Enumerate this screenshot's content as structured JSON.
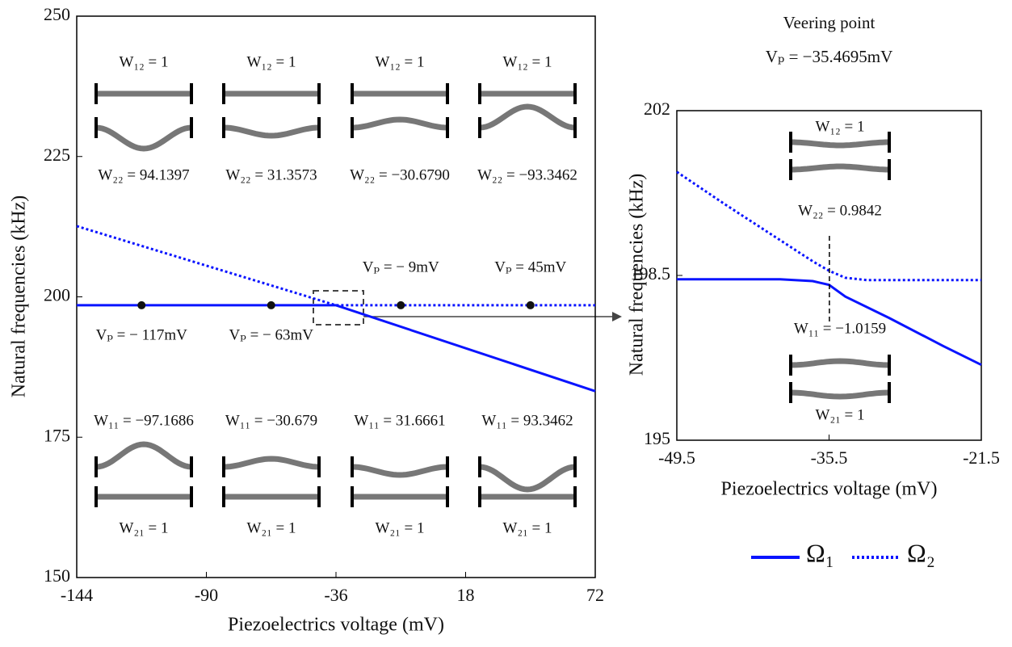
{
  "chart_data": [
    {
      "type": "line",
      "xlabel": "Piezoelectrics voltage (mV)",
      "ylabel": "Natural frequencies (kHz)",
      "xlim": [
        -144,
        72
      ],
      "ylim": [
        150,
        250
      ],
      "xticks": [
        -144,
        -90,
        -36,
        18,
        72
      ],
      "yticks": [
        150,
        175,
        200,
        225,
        250
      ],
      "series": [
        {
          "color": "#0a14ff",
          "style": "solid",
          "x": [
            -144,
            -36,
            72
          ],
          "values": [
            198.5,
            198.5,
            183.2
          ]
        },
        {
          "color": "#0a14ff",
          "style": "dotted",
          "x": [
            -144,
            -36,
            72
          ],
          "values": [
            212.6,
            198.5,
            198.5
          ]
        }
      ],
      "points": {
        "color": "#111111",
        "x": [
          -117,
          -63,
          -9,
          45
        ],
        "values": [
          198.5,
          198.5,
          198.5,
          198.5
        ],
        "labels": [
          "Vₚ = − 117mV",
          "Vₚ = − 63mV",
          "Vₚ = − 9mV",
          "Vₚ = 45mV"
        ]
      },
      "modes": [
        {
          "top": "W₁₂ = 1",
          "bottom": "W₂₂ = 94.1397"
        },
        {
          "top": "W₁₂ = 1",
          "bottom": "W₂₂ = 31.3573"
        },
        {
          "top": "W₁₂ = 1",
          "bottom": "W₂₂ = −30.6790"
        },
        {
          "top": "W₁₂ = 1",
          "bottom": "W₂₂ = −93.3462"
        },
        {
          "top": "W₁₁ = −97.1686",
          "bottom": "W₂₁ = 1"
        },
        {
          "top": "W₁₁ = −30.679",
          "bottom": "W₂₁ = 1"
        },
        {
          "top": "W₁₁ = 31.6661",
          "bottom": "W₂₁ = 1"
        },
        {
          "top": "W₁₁ = 93.3462",
          "bottom": "W₂₁ = 1"
        }
      ]
    },
    {
      "type": "line",
      "title": "Veering point",
      "subtitle": "Vₚ = −35.4695mV",
      "veering_x": -35.4695,
      "xlabel": "Piezoelectrics voltage (mV)",
      "ylabel": "Natural frequencies (kHz)",
      "xlim": [
        -49.5,
        -21.5
      ],
      "ylim": [
        195,
        202
      ],
      "xticks": [
        -49.5,
        -35.5,
        -21.5
      ],
      "yticks": [
        195,
        198.5,
        202
      ],
      "legend": "below",
      "series": [
        {
          "name": "Ω₁",
          "color": "#0a14ff",
          "style": "solid",
          "x": [
            -49.5,
            -40,
            -37,
            -35.5,
            -34,
            -30,
            -25,
            -21.5
          ],
          "values": [
            198.42,
            198.42,
            198.38,
            198.3,
            198.05,
            197.6,
            197.0,
            196.6
          ]
        },
        {
          "name": "Ω₂",
          "color": "#0a14ff",
          "style": "dotted",
          "x": [
            -49.5,
            -45,
            -40,
            -37,
            -35.5,
            -34,
            -32,
            -21.5
          ],
          "values": [
            200.7,
            200.0,
            199.25,
            198.8,
            198.6,
            198.45,
            198.4,
            198.4
          ]
        }
      ],
      "modes": [
        {
          "top": "W₁₂ = 1",
          "bottom": "W₂₂ = 0.9842"
        },
        {
          "top": "W₁₁ = −1.0159",
          "bottom": "W₂₁ = 1"
        }
      ]
    }
  ]
}
